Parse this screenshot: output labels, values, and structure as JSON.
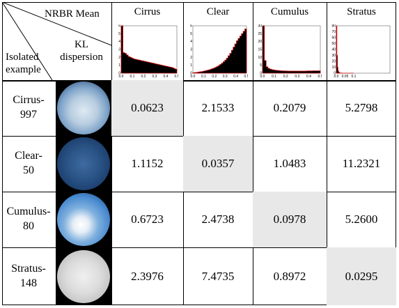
{
  "corner": {
    "top_label": "NRBR Mean",
    "mid_label_line1": "KL",
    "mid_label_line2": "dispersion",
    "left_label_line1": "Isolated",
    "left_label_line2": "example"
  },
  "columns": [
    {
      "title": "Cirrus",
      "ymax": 6,
      "yticks": [
        0,
        1,
        2,
        3,
        4,
        5,
        6
      ],
      "xticks": [
        "0.0",
        "0.1",
        "0.2",
        "0.3",
        "0.4",
        "0.5"
      ],
      "profile": [
        6,
        2.6,
        2.5,
        2.3,
        2.1,
        2.0,
        1.9,
        1.8,
        1.75,
        1.7,
        1.65,
        1.6,
        1.55,
        1.5,
        1.45,
        1.4,
        1.35,
        1.3,
        1.25,
        1.2,
        1.15,
        1.1,
        1.05,
        1.0,
        0.95,
        0.9,
        0.85,
        0.8,
        0.75,
        0.7,
        0.6,
        0.5
      ]
    },
    {
      "title": "Clear",
      "ymax": 6,
      "yticks": [
        0,
        1,
        2,
        3,
        4,
        5,
        6
      ],
      "xticks": [
        "0.0",
        "0.1",
        "0.2",
        "0.3",
        "0.4",
        "0.5"
      ],
      "profile": [
        0.05,
        0.08,
        0.1,
        0.13,
        0.17,
        0.2,
        0.25,
        0.3,
        0.35,
        0.4,
        0.47,
        0.55,
        0.63,
        0.72,
        0.82,
        0.95,
        1.1,
        1.25,
        1.45,
        1.65,
        1.9,
        2.2,
        2.5,
        2.9,
        3.3,
        3.7,
        4.1,
        4.4,
        4.7,
        5.0,
        5.3,
        5.6
      ]
    },
    {
      "title": "Cumulus",
      "ymax": 30,
      "yticks": [
        0,
        5,
        10,
        15,
        20,
        25,
        30
      ],
      "xticks": [
        "0.0",
        "0.1",
        "0.2",
        "0.3",
        "0.4",
        "0.5"
      ],
      "profile": [
        30,
        8,
        4,
        3,
        2.5,
        2.2,
        2.0,
        1.8,
        1.7,
        1.6,
        1.5,
        1.45,
        1.4,
        1.35,
        1.3,
        1.3,
        1.3,
        1.3,
        1.3,
        1.3,
        1.3,
        1.3,
        1.3,
        1.3,
        1.35,
        1.4,
        1.4,
        1.45,
        1.5,
        1.5,
        1.5,
        1.5
      ]
    },
    {
      "title": "Stratus",
      "ymax": 80,
      "yticks": [
        0,
        10,
        20,
        30,
        40,
        50,
        60,
        70,
        80
      ],
      "xticks": [
        "0.0",
        "0.05",
        "0.1"
      ],
      "profile": [
        80,
        30,
        10,
        4,
        2,
        1,
        0.5,
        0.3,
        0.2,
        0.1,
        0.05,
        0,
        0,
        0,
        0,
        0,
        0,
        0,
        0,
        0,
        0,
        0,
        0,
        0,
        0,
        0,
        0,
        0,
        0,
        0,
        0,
        0
      ]
    }
  ],
  "rows": [
    {
      "label_line1": "Cirrus-",
      "label_line2": "997",
      "sky": "cirrus",
      "values": [
        "0.0623",
        "2.1533",
        "0.2079",
        "5.2798"
      ],
      "highlight": 0
    },
    {
      "label_line1": "Clear-",
      "label_line2": "50",
      "sky": "clear",
      "values": [
        "1.1152",
        "0.0357",
        "1.0483",
        "11.2321"
      ],
      "highlight": 1
    },
    {
      "label_line1": "Cumulus-",
      "label_line2": "80",
      "sky": "cumulus",
      "values": [
        "0.6723",
        "2.4738",
        "0.0978",
        "5.2600"
      ],
      "highlight": 2
    },
    {
      "label_line1": "Stratus-",
      "label_line2": "148",
      "sky": "stratus",
      "values": [
        "2.3976",
        "7.4735",
        "0.8972",
        "0.0295"
      ],
      "highlight": 3
    }
  ],
  "colors": {
    "highlight": "#e8e8e8",
    "hist_fill": "#000000",
    "hist_edge": "#c00000"
  }
}
